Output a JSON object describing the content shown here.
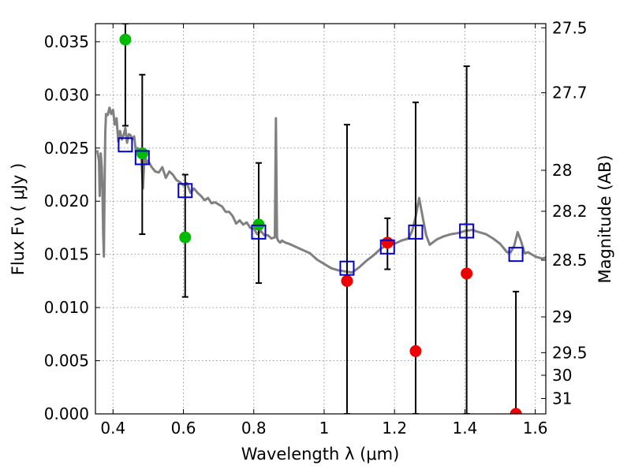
{
  "chart_data": {
    "type": "scatter",
    "title": "",
    "xlabel": "Wavelength  λ (μm)",
    "ylabel": "Flux  Fν  ( μJy )",
    "y2label": "Magnitude (AB)",
    "xlim": [
      0.35,
      1.63
    ],
    "ylim": [
      0.0,
      0.0367
    ],
    "grid": true,
    "x_ticks": [
      0.4,
      0.6,
      0.8,
      1.0,
      1.2,
      1.4,
      1.6
    ],
    "x_tick_labels": [
      "0.4",
      "0.6",
      "0.8",
      "1",
      "1.2",
      "1.4",
      "1.6"
    ],
    "y_ticks": [
      0.0,
      0.005,
      0.01,
      0.015,
      0.02,
      0.025,
      0.03,
      0.035
    ],
    "y_tick_labels": [
      "0.000",
      "0.005",
      "0.010",
      "0.015",
      "0.020",
      "0.025",
      "0.030",
      "0.035"
    ],
    "y2_ticks": [
      27.5,
      27.7,
      28,
      28.2,
      28.5,
      29,
      29.5,
      30,
      31
    ],
    "y2_tick_labels": [
      "27.5",
      "27.7",
      "28",
      "28.2",
      "28.5",
      "29",
      "29.5",
      "30",
      "31"
    ],
    "colors": {
      "template": "#808080",
      "model": "#0000cc",
      "detection": "#00bb00",
      "upper_limit": "#ee0000",
      "errorbar": "#000000",
      "grid": "#9a9a9a"
    },
    "series": [
      {
        "name": "",
        "kind": "template_spectrum",
        "x": [
          0.355,
          0.36,
          0.362,
          0.365,
          0.368,
          0.37,
          0.372,
          0.374,
          0.376,
          0.378,
          0.38,
          0.385,
          0.39,
          0.395,
          0.4,
          0.405,
          0.41,
          0.415,
          0.42,
          0.425,
          0.43,
          0.435,
          0.44,
          0.445,
          0.45,
          0.455,
          0.46,
          0.465,
          0.47,
          0.475,
          0.48,
          0.485,
          0.49,
          0.495,
          0.5,
          0.51,
          0.52,
          0.53,
          0.54,
          0.55,
          0.56,
          0.57,
          0.58,
          0.59,
          0.6,
          0.61,
          0.62,
          0.63,
          0.64,
          0.65,
          0.66,
          0.67,
          0.68,
          0.69,
          0.7,
          0.71,
          0.72,
          0.73,
          0.74,
          0.75,
          0.76,
          0.77,
          0.78,
          0.79,
          0.8,
          0.81,
          0.82,
          0.83,
          0.84,
          0.85,
          0.86,
          0.863,
          0.866,
          0.869,
          0.872,
          0.875,
          0.88,
          0.89,
          0.9,
          0.92,
          0.94,
          0.96,
          0.98,
          1.0,
          1.02,
          1.04,
          1.06,
          1.08,
          1.1,
          1.12,
          1.14,
          1.16,
          1.18,
          1.2,
          1.22,
          1.24,
          1.25,
          1.26,
          1.27,
          1.28,
          1.29,
          1.3,
          1.32,
          1.34,
          1.36,
          1.38,
          1.4,
          1.42,
          1.44,
          1.46,
          1.48,
          1.5,
          1.52,
          1.53,
          1.54,
          1.55,
          1.56,
          1.57,
          1.58,
          1.6,
          1.62,
          1.63
        ],
        "y": [
          0.0248,
          0.0238,
          0.0205,
          0.0245,
          0.0232,
          0.021,
          0.017,
          0.0148,
          0.0215,
          0.0265,
          0.0282,
          0.0281,
          0.0288,
          0.0282,
          0.0286,
          0.0272,
          0.0278,
          0.0256,
          0.0266,
          0.0258,
          0.0262,
          0.0269,
          0.0255,
          0.0263,
          0.0262,
          0.0258,
          0.0261,
          0.0247,
          0.025,
          0.0246,
          0.0245,
          0.0212,
          0.0247,
          0.0236,
          0.0238,
          0.0232,
          0.0228,
          0.0227,
          0.0232,
          0.0222,
          0.0228,
          0.0225,
          0.022,
          0.0218,
          0.0215,
          0.0217,
          0.0208,
          0.0212,
          0.0208,
          0.0205,
          0.0201,
          0.0203,
          0.0198,
          0.0199,
          0.0197,
          0.0195,
          0.019,
          0.019,
          0.0186,
          0.0179,
          0.0182,
          0.0178,
          0.018,
          0.0175,
          0.0174,
          0.0169,
          0.0172,
          0.0168,
          0.0168,
          0.0165,
          0.0166,
          0.0278,
          0.0166,
          0.0163,
          0.0162,
          0.0161,
          0.0163,
          0.0161,
          0.016,
          0.0157,
          0.0154,
          0.0151,
          0.0145,
          0.0141,
          0.0137,
          0.0135,
          0.0134,
          0.0133,
          0.0138,
          0.0144,
          0.0149,
          0.0155,
          0.0159,
          0.016,
          0.0163,
          0.0165,
          0.0172,
          0.0185,
          0.0203,
          0.0185,
          0.0168,
          0.0159,
          0.0164,
          0.0167,
          0.0169,
          0.017,
          0.0172,
          0.0173,
          0.0171,
          0.0169,
          0.0165,
          0.016,
          0.0152,
          0.0152,
          0.0158,
          0.0171,
          0.0162,
          0.0151,
          0.0152,
          0.0148,
          0.0146,
          0.0147
        ]
      },
      {
        "name": "",
        "kind": "model_squares",
        "x": [
          0.435,
          0.483,
          0.605,
          0.814,
          1.065,
          1.18,
          1.26,
          1.405,
          1.545
        ],
        "y": [
          0.0253,
          0.0241,
          0.021,
          0.0171,
          0.0137,
          0.0157,
          0.0171,
          0.0172,
          0.015
        ]
      },
      {
        "name": "",
        "kind": "detections",
        "x": [
          0.435,
          0.483,
          0.605,
          0.814
        ],
        "y": [
          0.0352,
          0.0245,
          0.0166,
          0.0178
        ],
        "err_low": [
          0.0271,
          0.0169,
          0.011,
          0.0123
        ],
        "err_high": [
          0.0367,
          0.0319,
          0.0225,
          0.0236
        ]
      },
      {
        "name": "",
        "kind": "upper_limits",
        "x": [
          1.065,
          1.18,
          1.26,
          1.405,
          1.545
        ],
        "y": [
          0.0125,
          0.0161,
          0.0059,
          0.0132,
          0.0
        ],
        "err_low": [
          0.0,
          0.0136,
          0.0,
          0.0,
          0.0
        ],
        "err_high": [
          0.0272,
          0.0184,
          0.0293,
          0.0327,
          0.0115
        ]
      }
    ]
  }
}
